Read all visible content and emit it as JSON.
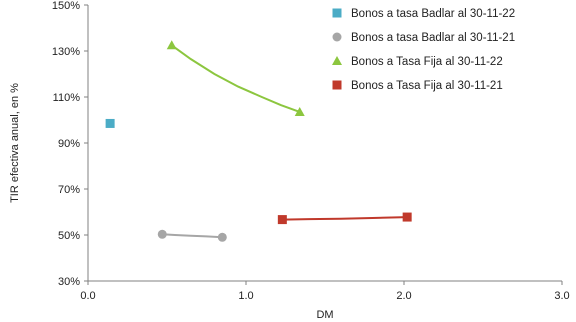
{
  "chart_data": {
    "type": "scatter",
    "xlabel": "DM",
    "ylabel": "TIR efectiva anual, en %",
    "xlim": [
      0.0,
      3.0
    ],
    "ylim": [
      30,
      150
    ],
    "x_ticks": [
      0.0,
      1.0,
      2.0,
      3.0
    ],
    "x_tick_labels": [
      "0.0",
      "1.0",
      "2.0",
      "3.0"
    ],
    "y_ticks": [
      30,
      50,
      70,
      90,
      110,
      130,
      150
    ],
    "y_tick_labels": [
      "30%",
      "50%",
      "70%",
      "90%",
      "110%",
      "130%",
      "150%"
    ],
    "grid": false,
    "legend_position": "top-right",
    "series": [
      {
        "name": "Bonos a tasa Badlar al 30-11-22",
        "color": "#4bacc6",
        "marker": "square",
        "points": [
          [
            0.14,
            98.5
          ]
        ],
        "trend": []
      },
      {
        "name": "Bonos a tasa Badlar al 30-11-21",
        "color": "#a6a6a6",
        "marker": "circle",
        "points": [
          [
            0.47,
            50.3
          ],
          [
            0.85,
            49.0
          ]
        ],
        "trend": [
          [
            0.47,
            50.3
          ],
          [
            0.55,
            50.0
          ],
          [
            0.65,
            49.7
          ],
          [
            0.75,
            49.4
          ],
          [
            0.85,
            49.0
          ]
        ]
      },
      {
        "name": "Bonos a Tasa Fija al 30-11-22",
        "color": "#8cc63f",
        "marker": "triangle",
        "points": [
          [
            0.53,
            132.5
          ],
          [
            1.34,
            103.5
          ]
        ],
        "trend": [
          [
            0.53,
            132.5
          ],
          [
            0.65,
            126.5
          ],
          [
            0.8,
            120.0
          ],
          [
            0.95,
            114.5
          ],
          [
            1.1,
            110.0
          ],
          [
            1.22,
            106.5
          ],
          [
            1.34,
            103.5
          ]
        ]
      },
      {
        "name": "Bonos a Tasa Fija al 30-11-21",
        "color": "#c0392b",
        "marker": "square",
        "points": [
          [
            1.23,
            56.7
          ],
          [
            2.02,
            57.8
          ]
        ],
        "trend": [
          [
            1.23,
            56.7
          ],
          [
            1.4,
            56.9
          ],
          [
            1.6,
            57.1
          ],
          [
            1.8,
            57.4
          ],
          [
            2.02,
            57.8
          ]
        ]
      }
    ]
  }
}
